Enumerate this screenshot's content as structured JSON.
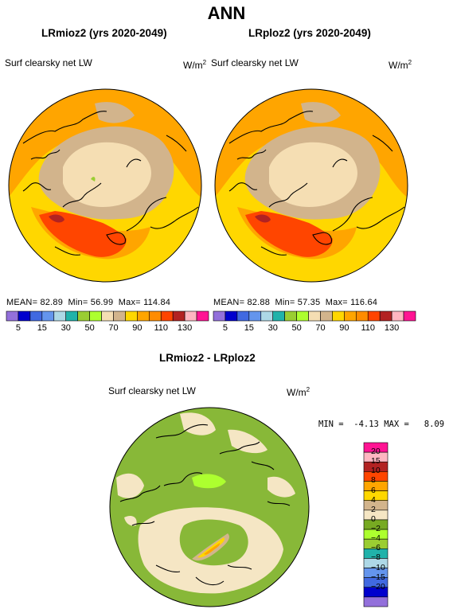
{
  "page": {
    "title": "ANN"
  },
  "top_left": {
    "title": "LRmioz2 (yrs 2020-2049)",
    "variable": "Surf clearsky net LW",
    "units": "W/m",
    "units_exp": "2",
    "mean_label": "MEAN=",
    "mean": "82.89",
    "min_label": "Min=",
    "min": "56.99",
    "max_label": "Max=",
    "max": "114.84"
  },
  "top_right": {
    "title": "LRploz2 (yrs 2020-2049)",
    "variable": "Surf clearsky net LW",
    "units": "W/m",
    "units_exp": "2",
    "mean_label": "MEAN=",
    "mean": "82.88",
    "min_label": "Min=",
    "min": "57.35",
    "max_label": "Max=",
    "max": "116.64"
  },
  "top_colorbar": {
    "colors": [
      "#9370db",
      "#0000cd",
      "#4169e1",
      "#6495ed",
      "#add8e6",
      "#20b2aa",
      "#9acd32",
      "#adff2f",
      "#f5deb3",
      "#d2b48c",
      "#ffd700",
      "#ffa500",
      "#ff8c00",
      "#ff4500",
      "#b22222",
      "#ffb6c1",
      "#ff1493"
    ],
    "ticks": [
      "5",
      "15",
      "30",
      "50",
      "70",
      "90",
      "110",
      "130"
    ]
  },
  "bottom": {
    "title": "LRmioz2 - LRploz2",
    "variable": "Surf clearsky net LW",
    "units": "W/m",
    "units_exp": "2",
    "min_label": "MIN =",
    "min": "-4.13",
    "max_label": "MAX =",
    "max": "8.09"
  },
  "diff_colorbar": {
    "colors": [
      "#9370db",
      "#0000cd",
      "#4169e1",
      "#6495ed",
      "#add8e6",
      "#20b2aa",
      "#9acd32",
      "#adff2f",
      "#77aa22",
      "#f5e6c4",
      "#d2b48c",
      "#ffd700",
      "#ffa500",
      "#ff4500",
      "#b22222",
      "#ffb6c1",
      "#ff1493"
    ],
    "labels": [
      "20",
      "15",
      "10",
      "8",
      "6",
      "4",
      "2",
      "0",
      "−2",
      "−4",
      "−6",
      "−8",
      "−10",
      "−15",
      "−20"
    ]
  },
  "colors": {
    "outer_yellow": "#ffd700",
    "orange": "#ffa500",
    "red_orange": "#ff4500",
    "tan": "#d2b48c",
    "wheat": "#f5deb3",
    "green": "#88b838",
    "pale": "#f5e6c4"
  }
}
